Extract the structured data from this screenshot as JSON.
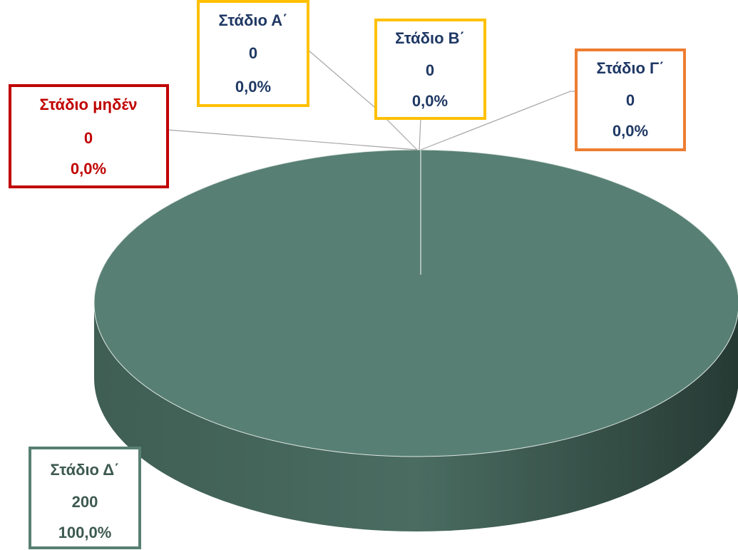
{
  "chart_data": {
    "type": "pie3d",
    "categories": [
      "Στάδιο μηδέν",
      "Στάδιο Α΄",
      "Στάδιο Β΄",
      "Στάδιο Γ΄",
      "Στάδιο Δ΄"
    ],
    "values": [
      0,
      0,
      0,
      0,
      200
    ],
    "percents": [
      0,
      0,
      0,
      0,
      100
    ],
    "percent_labels": [
      "0,0%",
      "0,0%",
      "0,0%",
      "0,0%",
      "100,0%"
    ],
    "colors": [
      "#c00000",
      "#ffc000",
      "#ffc000",
      "#ed7d31",
      "#587f73"
    ]
  }
}
